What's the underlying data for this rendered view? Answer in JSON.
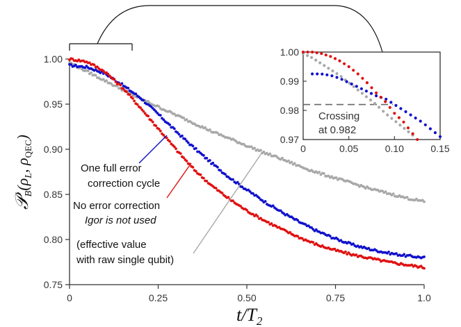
{
  "chart_data": [
    {
      "type": "scatter",
      "xlabel": "t/T",
      "xlabel_sub": "2",
      "ylabel": "𝒫",
      "ylabel_sub": "B",
      "ylabel_args": "(ρ",
      "ylabel_args_sub1": "L",
      "ylabel_args_mid": ", ρ",
      "ylabel_args_sub2": "QEC",
      "ylabel_args_end": ")",
      "xlim": [
        0,
        1.0
      ],
      "ylim": [
        0.75,
        1.0
      ],
      "x_ticks": [
        "0",
        "0.25",
        "0.50",
        "0.75",
        "1.0"
      ],
      "x_tick_values": [
        0,
        0.25,
        0.5,
        0.75,
        1.0
      ],
      "y_ticks": [
        "0.75",
        "0.80",
        "0.85",
        "0.90",
        "0.95",
        "1.00"
      ],
      "y_tick_values": [
        0.75,
        0.8,
        0.85,
        0.9,
        0.95,
        1.0
      ],
      "grid": false,
      "series": [
        {
          "color": "#1010cc",
          "x": [
            0,
            0.05,
            0.1,
            0.15,
            0.2,
            0.25,
            0.3,
            0.35,
            0.4,
            0.45,
            0.5,
            0.55,
            0.6,
            0.65,
            0.7,
            0.75,
            0.8,
            0.85,
            0.9,
            0.95,
            1.0
          ],
          "y": [
            0.993,
            0.991,
            0.984,
            0.971,
            0.957,
            0.939,
            0.92,
            0.902,
            0.885,
            0.869,
            0.855,
            0.842,
            0.83,
            0.819,
            0.809,
            0.801,
            0.794,
            0.789,
            0.785,
            0.782,
            0.78
          ]
        },
        {
          "color": "#e01010",
          "x": [
            0,
            0.05,
            0.1,
            0.15,
            0.2,
            0.25,
            0.3,
            0.35,
            0.4,
            0.45,
            0.5,
            0.55,
            0.6,
            0.65,
            0.7,
            0.75,
            0.8,
            0.85,
            0.9,
            0.95,
            1.0
          ],
          "y": [
            1.0,
            0.997,
            0.986,
            0.968,
            0.946,
            0.923,
            0.9,
            0.878,
            0.86,
            0.845,
            0.832,
            0.821,
            0.811,
            0.802,
            0.794,
            0.788,
            0.783,
            0.779,
            0.775,
            0.772,
            0.769
          ]
        },
        {
          "color": "#a8a8a8",
          "x": [
            0,
            0.05,
            0.1,
            0.15,
            0.2,
            0.25,
            0.3,
            0.35,
            0.4,
            0.45,
            0.5,
            0.55,
            0.6,
            0.65,
            0.7,
            0.75,
            0.8,
            0.85,
            0.9,
            0.95,
            1.0
          ],
          "y": [
            0.996,
            0.986,
            0.976,
            0.966,
            0.956,
            0.947,
            0.938,
            0.929,
            0.92,
            0.912,
            0.904,
            0.896,
            0.889,
            0.881,
            0.874,
            0.868,
            0.862,
            0.856,
            0.851,
            0.846,
            0.842
          ]
        }
      ],
      "annotations": [
        {
          "lines": [
            "One full error",
            "correction cycle"
          ],
          "color": "#1010cc"
        },
        {
          "lines": [
            "No error correction"
          ],
          "italic_line": "Igor is not used",
          "color": "#e01010"
        },
        {
          "lines": [
            "(effective value",
            "with raw single qubit)"
          ],
          "color": "#a8a8a8"
        }
      ]
    },
    {
      "type": "scatter",
      "inset": true,
      "xlim": [
        0,
        0.15
      ],
      "ylim": [
        0.97,
        1.0
      ],
      "x_ticks": [
        "0",
        "0.05",
        "0.10",
        "0.15"
      ],
      "x_tick_values": [
        0,
        0.05,
        0.1,
        0.15
      ],
      "y_ticks": [
        "0.97",
        "0.98",
        "0.99",
        "1.00"
      ],
      "y_tick_values": [
        0.97,
        0.98,
        0.99,
        1.0
      ],
      "reference_line": {
        "y": 0.982
      },
      "annotation": [
        "Crossing",
        "at 0.982"
      ],
      "series": [
        {
          "color": "#1010cc",
          "x": [
            0.01,
            0.02,
            0.03,
            0.04,
            0.05,
            0.06,
            0.07,
            0.08,
            0.09,
            0.1,
            0.11,
            0.12,
            0.13,
            0.14,
            0.15
          ],
          "y": [
            0.9925,
            0.9925,
            0.992,
            0.991,
            0.9895,
            0.988,
            0.9865,
            0.985,
            0.984,
            0.982,
            0.98,
            0.978,
            0.976,
            0.9735,
            0.971
          ]
        },
        {
          "color": "#e01010",
          "x": [
            0.0,
            0.01,
            0.02,
            0.03,
            0.04,
            0.05,
            0.06,
            0.07,
            0.08,
            0.09,
            0.1,
            0.11,
            0.12,
            0.13
          ],
          "y": [
            1.0,
            1.0,
            0.9995,
            0.9985,
            0.997,
            0.995,
            0.9925,
            0.9895,
            0.986,
            0.983,
            0.979,
            0.976,
            0.972,
            0.968
          ]
        },
        {
          "color": "#a8a8a8",
          "x": [
            0.0,
            0.01,
            0.02,
            0.03,
            0.04,
            0.05,
            0.06,
            0.07,
            0.08,
            0.09,
            0.1,
            0.11,
            0.12
          ],
          "y": [
            0.9995,
            0.998,
            0.996,
            0.994,
            0.992,
            0.9895,
            0.987,
            0.9845,
            0.982,
            0.979,
            0.9765,
            0.974,
            0.9715
          ]
        }
      ]
    }
  ]
}
